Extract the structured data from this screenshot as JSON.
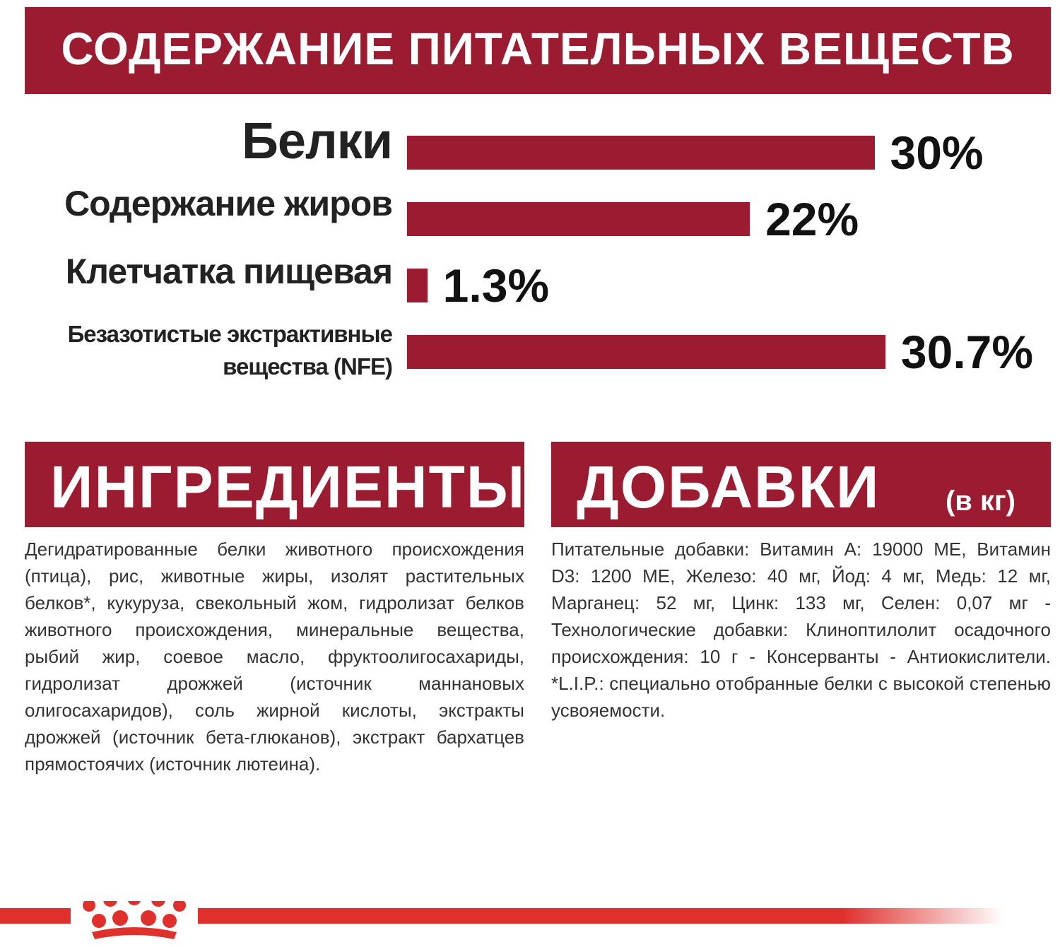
{
  "header": {
    "title": "СОДЕРЖАНИЕ ПИТАТЕЛЬНЫХ ВЕЩЕСТВ"
  },
  "chart_data": {
    "type": "bar",
    "orientation": "horizontal",
    "categories": [
      "Белки",
      "Содержание жиров",
      "Клетчатка пищевая",
      "Безазотистые экстрактивные вещества (NFE)"
    ],
    "values": [
      30,
      22,
      1.3,
      30.7
    ],
    "value_labels": [
      "30%",
      "22%",
      "1.3%",
      "30.7%"
    ],
    "color": "#9b1b30"
  },
  "ingredients": {
    "title": "ИНГРЕДИЕНТЫ",
    "text": "Дегидратированные белки животного происхождения (птица), рис, животные жиры, изолят растительных белков*, кукуруза, свекольный жом, гидролизат белков животного происхождения, минеральные вещества, рыбий жир, соевое масло, фруктоолигосахариды, гидролизат дрожжей (источник маннановых олигосахаридов), соль жирной кислоты, экстракты дрожжей (источник бета-глюканов), экстракт бархатцев прямостоячих (источник лютеина)."
  },
  "additives": {
    "title": "ДОБАВКИ",
    "unit": "(в кг)",
    "text": "Питательные добавки: Витамин А: 19000 МЕ, Витамин D3: 1200 МЕ, Железо: 40 мг, Йод: 4 мг, Медь: 12 мг, Марганец: 52 мг, Цинк: 133 мг, Селен: 0,07 мг - Технологические добавки: Клиноптилолит осадочного происхождения: 10 г - Консерванты - Антиокислители. *L.I.P.: специально отобранные белки с высокой степенью усвояемости."
  }
}
